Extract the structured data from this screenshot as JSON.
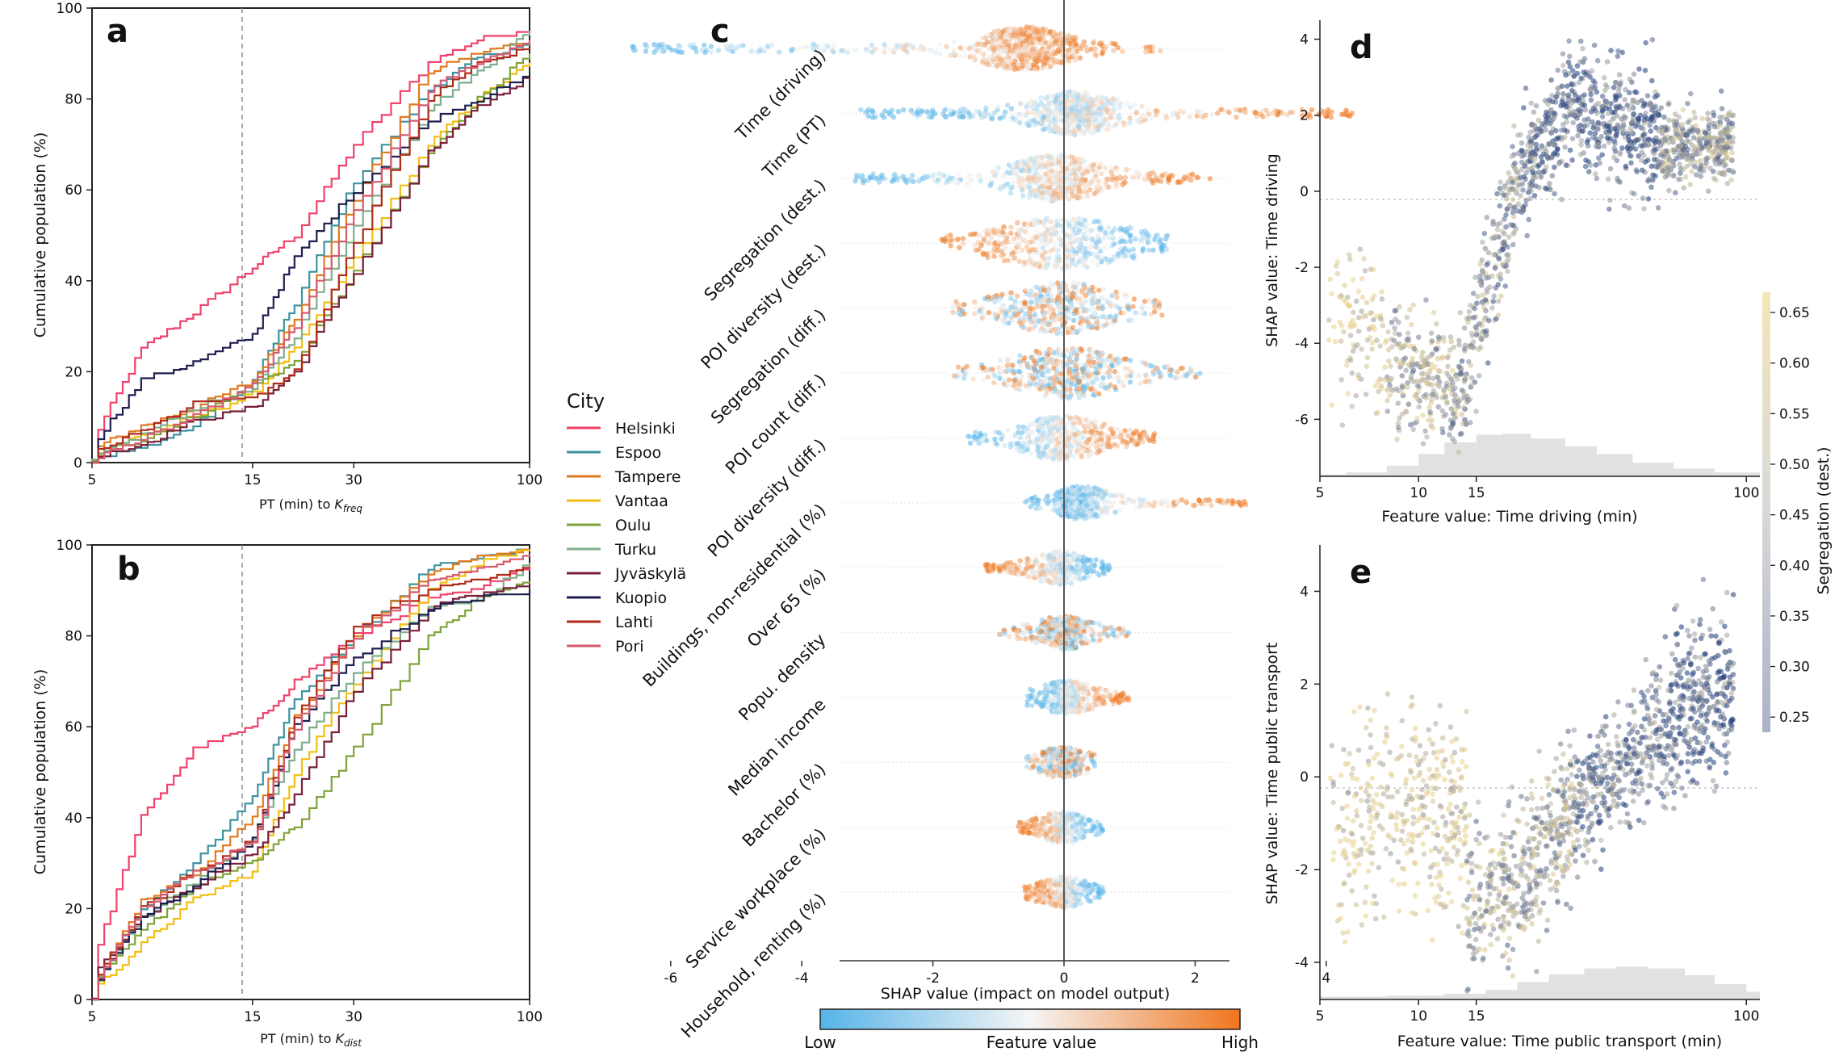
{
  "panels": {
    "a": "a",
    "b": "b",
    "c": "c",
    "d": "d",
    "e": "e"
  },
  "legend": {
    "title": "City",
    "items": [
      {
        "name": "Helsinki",
        "color": "#f0426a"
      },
      {
        "name": "Espoo",
        "color": "#3d93a0"
      },
      {
        "name": "Tampere",
        "color": "#e07a1f"
      },
      {
        "name": "Vantaa",
        "color": "#f3be12"
      },
      {
        "name": "Oulu",
        "color": "#7fa33a"
      },
      {
        "name": "Turku",
        "color": "#7fae8c"
      },
      {
        "name": "Jyväskylä",
        "color": "#7a1f38"
      },
      {
        "name": "Kuopio",
        "color": "#1c1f4f"
      },
      {
        "name": "Lahti",
        "color": "#b02a18"
      },
      {
        "name": "Pori",
        "color": "#d65a6e"
      }
    ]
  },
  "chart_data": [
    {
      "id": "a",
      "type": "line",
      "ylabel": "Cumulative population (%)",
      "xlabel_main": "PT (min) to ",
      "xlabel_sym": "K",
      "xlabel_sub": "freq",
      "xscale": "log",
      "xlim": [
        5,
        100
      ],
      "ylim": [
        0,
        100
      ],
      "xticks": [
        5,
        15,
        30,
        100
      ],
      "yticks": [
        0,
        20,
        40,
        60,
        80,
        100
      ],
      "vline": 15,
      "x": [
        5,
        7,
        10,
        15,
        20,
        30,
        50,
        70,
        100
      ],
      "series": [
        {
          "name": "Helsinki",
          "values": [
            5,
            25,
            33,
            43,
            50,
            70,
            88,
            93,
            95
          ]
        },
        {
          "name": "Espoo",
          "values": [
            1,
            3,
            8,
            18,
            35,
            62,
            82,
            89,
            92
          ]
        },
        {
          "name": "Tampere",
          "values": [
            3,
            8,
            12,
            18,
            32,
            58,
            86,
            90,
            93
          ]
        },
        {
          "name": "Vantaa",
          "values": [
            2,
            6,
            10,
            15,
            25,
            45,
            70,
            80,
            88
          ]
        },
        {
          "name": "Oulu",
          "values": [
            2,
            5,
            10,
            17,
            22,
            42,
            68,
            80,
            90
          ]
        },
        {
          "name": "Turku",
          "values": [
            1,
            6,
            12,
            16,
            28,
            52,
            78,
            86,
            95
          ]
        },
        {
          "name": "Jyväskylä",
          "values": [
            1,
            4,
            9,
            12,
            20,
            42,
            68,
            78,
            85
          ]
        },
        {
          "name": "Kuopio",
          "values": [
            4,
            18,
            22,
            28,
            45,
            60,
            75,
            80,
            85
          ]
        },
        {
          "name": "Lahti",
          "values": [
            2,
            7,
            13,
            14,
            20,
            48,
            80,
            88,
            91
          ]
        },
        {
          "name": "Pori",
          "values": [
            1,
            5,
            10,
            17,
            30,
            55,
            82,
            88,
            93
          ]
        }
      ]
    },
    {
      "id": "b",
      "type": "line",
      "ylabel": "Cumulative population (%)",
      "xlabel_main": "PT (min) to ",
      "xlabel_sym": "K",
      "xlabel_sub": "dist",
      "xscale": "log",
      "xlim": [
        5,
        100
      ],
      "ylim": [
        0,
        100
      ],
      "xticks": [
        5,
        15,
        30,
        100
      ],
      "yticks": [
        0,
        20,
        40,
        60,
        80,
        100
      ],
      "vline": 15,
      "x": [
        5,
        7,
        10,
        15,
        20,
        30,
        50,
        70,
        100
      ],
      "series": [
        {
          "name": "Helsinki",
          "values": [
            8,
            40,
            55,
            60,
            70,
            80,
            88,
            90,
            96
          ]
        },
        {
          "name": "Espoo",
          "values": [
            3,
            20,
            30,
            45,
            66,
            80,
            95,
            97,
            99
          ]
        },
        {
          "name": "Tampere",
          "values": [
            2,
            22,
            28,
            40,
            62,
            80,
            94,
            97,
            99
          ]
        },
        {
          "name": "Vantaa",
          "values": [
            2,
            12,
            22,
            28,
            50,
            70,
            90,
            96,
            99
          ]
        },
        {
          "name": "Oulu",
          "values": [
            3,
            15,
            25,
            30,
            38,
            55,
            80,
            88,
            92
          ]
        },
        {
          "name": "Turku",
          "values": [
            3,
            18,
            26,
            35,
            55,
            72,
            86,
            88,
            96
          ]
        },
        {
          "name": "Jyväskylä",
          "values": [
            5,
            18,
            25,
            32,
            45,
            68,
            86,
            89,
            91
          ]
        },
        {
          "name": "Kuopio",
          "values": [
            3,
            18,
            25,
            35,
            60,
            75,
            86,
            88,
            90
          ]
        },
        {
          "name": "Lahti",
          "values": [
            4,
            20,
            28,
            35,
            62,
            82,
            90,
            92,
            95
          ]
        },
        {
          "name": "Pori",
          "values": [
            3,
            20,
            28,
            35,
            60,
            80,
            92,
            95,
            98
          ]
        }
      ]
    },
    {
      "id": "c",
      "type": "scatter",
      "subtype": "shap-beeswarm",
      "xlabel": "SHAP value (impact on model output)",
      "xlim": [
        -7.3,
        5.0
      ],
      "xticks": [
        -6,
        -4,
        -2,
        0,
        2,
        4
      ],
      "features": [
        {
          "name": "Time (driving)",
          "min": -6.6,
          "max": 1.6,
          "spread": 0.5,
          "corr": 1
        },
        {
          "name": "Time (PT)",
          "min": -3.1,
          "max": 4.4,
          "spread": 0.5,
          "corr": 1
        },
        {
          "name": "Segregation (dest.)",
          "min": -3.2,
          "max": 2.3,
          "spread": 0.55,
          "corr": 1
        },
        {
          "name": "POI diversity (dest.)",
          "min": -1.9,
          "max": 1.6,
          "spread": 0.85,
          "corr": -1
        },
        {
          "name": "Segregation (diff.)",
          "min": -1.7,
          "max": 1.5,
          "spread": 0.65,
          "corr": 0
        },
        {
          "name": "POI count (diff.)",
          "min": -1.7,
          "max": 2.1,
          "spread": 0.65,
          "corr": 0
        },
        {
          "name": "POI diversity (diff.)",
          "min": -1.5,
          "max": 1.4,
          "spread": 0.5,
          "corr": 1
        },
        {
          "name": "Buildings, non-residential (%)",
          "min": -0.6,
          "max": 2.8,
          "spread": 0.3,
          "corr": 1
        },
        {
          "name": "Over 65 (%)",
          "min": -1.2,
          "max": 0.7,
          "spread": 0.3,
          "corr": -1
        },
        {
          "name": "Popu. density",
          "min": -1.0,
          "max": 1.0,
          "spread": 0.3,
          "corr": 0
        },
        {
          "name": "Median income",
          "min": -0.6,
          "max": 1.0,
          "spread": 0.3,
          "corr": 1
        },
        {
          "name": "Bachelor (%)",
          "min": -0.6,
          "max": 0.5,
          "spread": 0.25,
          "corr": 0
        },
        {
          "name": "Service workplace (%)",
          "min": -0.7,
          "max": 0.6,
          "spread": 0.25,
          "corr": -1
        },
        {
          "name": "Household, renting (%)",
          "min": -0.6,
          "max": 0.6,
          "spread": 0.25,
          "corr": -1
        }
      ],
      "colorbar": {
        "label": "Feature value",
        "low": "Low",
        "high": "High",
        "low_color": "#56b4e9",
        "mid_color": "#f5f5f5",
        "high_color": "#f0761e"
      }
    },
    {
      "id": "d",
      "type": "scatter",
      "subtype": "shap-dependence",
      "xlabel": "Feature value: Time driving (min)",
      "ylabel": "SHAP value: Time driving",
      "xscale": "log",
      "xlim": [
        5,
        110
      ],
      "ylim": [
        -7.5,
        4.5
      ],
      "xticks": [
        5,
        10,
        15,
        100
      ],
      "yticks": [
        -6,
        -4,
        -2,
        0,
        2,
        4
      ],
      "hist": [
        [
          5,
          0.2
        ],
        [
          6,
          0.4
        ],
        [
          8,
          1.1
        ],
        [
          10,
          2.3
        ],
        [
          12,
          3.5
        ],
        [
          15,
          4.3
        ],
        [
          18,
          4.4
        ],
        [
          22,
          3.9
        ],
        [
          28,
          3.1
        ],
        [
          35,
          2.3
        ],
        [
          45,
          1.4
        ],
        [
          60,
          0.8
        ],
        [
          80,
          0.4
        ]
      ]
    },
    {
      "id": "e",
      "type": "scatter",
      "subtype": "shap-dependence",
      "xlabel": "Feature value: Time public transport (min)",
      "ylabel": "SHAP value: Time public transport",
      "xscale": "log",
      "xlim": [
        5,
        110
      ],
      "ylim": [
        -4.8,
        5.0
      ],
      "xticks": [
        5,
        10,
        15,
        100
      ],
      "yticks": [
        -4,
        -2,
        0,
        2,
        4
      ],
      "hist": [
        [
          5,
          0.3
        ],
        [
          8,
          0.4
        ],
        [
          12,
          0.6
        ],
        [
          16,
          1.0
        ],
        [
          20,
          1.8
        ],
        [
          25,
          2.6
        ],
        [
          32,
          3.2
        ],
        [
          40,
          3.4
        ],
        [
          50,
          3.2
        ],
        [
          65,
          2.5
        ],
        [
          80,
          1.6
        ],
        [
          100,
          0.8
        ]
      ]
    }
  ],
  "segregation_colorbar": {
    "label": "Segregation (dest.)",
    "ticks": [
      "0.65",
      "0.60",
      "0.55",
      "0.50",
      "0.45",
      "0.40",
      "0.35",
      "0.30",
      "0.25"
    ],
    "range": [
      0.235,
      0.67
    ],
    "low_color": "#1f3d7a",
    "mid_color": "#a0a0a0",
    "high_color": "#e8d08a"
  }
}
